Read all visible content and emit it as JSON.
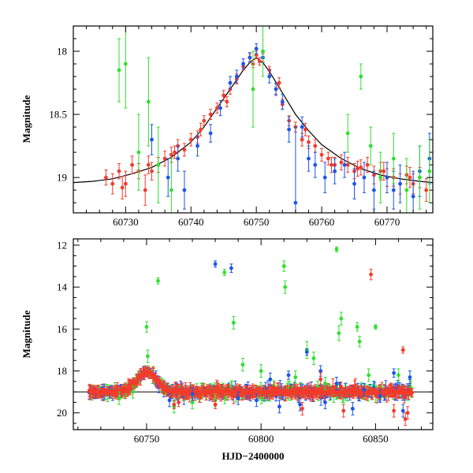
{
  "colors": {
    "green": "#2ee02e",
    "blue": "#1a56e8",
    "red": "#f53a2a",
    "model": "#000000",
    "frame": "#000000"
  },
  "chart_data": [
    {
      "type": "scatter",
      "title": "",
      "xlabel": "",
      "ylabel": "Magnitude",
      "xlim": [
        60722,
        60777
      ],
      "ylim": [
        19.28,
        17.8
      ],
      "y_inverted": true,
      "grid": false,
      "legend": "none",
      "xticks": [
        60730,
        60740,
        60750,
        60760,
        60770
      ],
      "xtick_labels": [
        "60730",
        "60740",
        "60750",
        "60760",
        "60770"
      ],
      "yticks": [
        18,
        18.5,
        19
      ],
      "ytick_labels": [
        "18",
        "18.5",
        "19"
      ],
      "model_curve": {
        "x": [
          60722,
          60725,
          60728,
          60731,
          60734,
          60737,
          60740,
          60742,
          60744,
          60746,
          60748,
          60749,
          60750,
          60751,
          60752,
          60754,
          60756,
          60758,
          60760,
          60763,
          60766,
          60769,
          60772,
          60775,
          60777
        ],
        "y": [
          19.04,
          19.03,
          19.01,
          18.97,
          18.92,
          18.84,
          18.72,
          18.6,
          18.45,
          18.3,
          18.15,
          18.09,
          18.05,
          18.09,
          18.16,
          18.33,
          18.5,
          18.63,
          18.74,
          18.85,
          18.93,
          18.98,
          19.01,
          19.03,
          19.04
        ]
      },
      "series": [
        {
          "color_key": "red",
          "x": [
            60727.0,
            60728.0,
            60729.0,
            60730.0,
            60731.0,
            60732.0,
            60733.0,
            60734.0,
            60735.0,
            60736.0,
            60737.0,
            60738.0,
            60739.0,
            60740.0,
            60741.0,
            60742.0,
            60743.0,
            60744.0,
            60745.0,
            60746.0,
            60747.0,
            60748.0,
            60749.0,
            60750.0,
            60751.0,
            60752.0,
            60753.0,
            60754.0,
            60755.0,
            60756.0,
            60757.0,
            60758.0,
            60759.0,
            60760.0,
            60761.0,
            60762.0,
            60763.0,
            60764.0,
            60765.0,
            60766.0,
            60767.0,
            60768.0,
            60769.0,
            60770.0,
            60771.0,
            60772.0,
            60773.0,
            60774.0,
            60775.0,
            60776.0,
            60729.5,
            60733.5,
            60737.5,
            60741.5,
            60745.5,
            60749.5,
            60750.5,
            60753.5,
            60757.5,
            60761.5,
            60765.5,
            60769.5,
            60773.5
          ],
          "y": [
            19.0,
            19.05,
            18.95,
            19.05,
            18.9,
            18.95,
            19.1,
            18.95,
            18.9,
            18.85,
            18.82,
            18.75,
            18.78,
            18.7,
            18.68,
            18.55,
            18.5,
            18.45,
            18.35,
            18.3,
            18.22,
            18.12,
            18.05,
            18.03,
            18.05,
            18.15,
            18.3,
            18.42,
            18.55,
            18.6,
            18.7,
            18.72,
            18.75,
            18.82,
            18.85,
            18.9,
            18.88,
            18.9,
            18.95,
            18.92,
            18.9,
            18.98,
            18.95,
            19.0,
            19.0,
            19.05,
            18.98,
            19.05,
            19.0,
            19.1,
            19.08,
            18.9,
            18.8,
            18.62,
            18.4,
            18.1,
            18.08,
            18.25,
            18.62,
            18.9,
            18.93,
            18.95,
            19.0
          ],
          "err": [
            0.06,
            0.08,
            0.06,
            0.1,
            0.07,
            0.06,
            0.12,
            0.07,
            0.06,
            0.06,
            0.06,
            0.05,
            0.05,
            0.05,
            0.05,
            0.04,
            0.04,
            0.04,
            0.04,
            0.04,
            0.04,
            0.03,
            0.03,
            0.03,
            0.03,
            0.03,
            0.04,
            0.04,
            0.04,
            0.04,
            0.05,
            0.05,
            0.05,
            0.05,
            0.05,
            0.06,
            0.06,
            0.06,
            0.06,
            0.06,
            0.06,
            0.07,
            0.07,
            0.07,
            0.07,
            0.08,
            0.07,
            0.08,
            0.08,
            0.09,
            0.09,
            0.07,
            0.05,
            0.05,
            0.04,
            0.03,
            0.03,
            0.04,
            0.05,
            0.06,
            0.06,
            0.07,
            0.08
          ]
        },
        {
          "color_key": "blue",
          "x": [
            60734.0,
            60736.5,
            60738.0,
            60739.0,
            60741.0,
            60743.0,
            60744.5,
            60746.0,
            60747.0,
            60748.0,
            60749.0,
            60750.0,
            60751.0,
            60752.0,
            60753.0,
            60754.0,
            60755.0,
            60756.0,
            60757.0,
            60758.0,
            60759.0,
            60760.5,
            60762.0,
            60763.5,
            60765.0,
            60766.5,
            60768.0,
            60770.0,
            60771.0,
            60772.0,
            60774.0,
            60775.0,
            60776.5
          ],
          "y": [
            18.7,
            19.0,
            18.85,
            19.1,
            18.75,
            18.65,
            18.45,
            18.25,
            18.2,
            18.1,
            18.05,
            17.98,
            18.05,
            18.2,
            18.3,
            18.4,
            18.62,
            19.2,
            18.6,
            18.85,
            18.9,
            19.0,
            18.95,
            18.9,
            19.05,
            19.0,
            19.1,
            19.0,
            19.1,
            19.05,
            19.15,
            18.95,
            18.85
          ],
          "err": [
            0.12,
            0.15,
            0.1,
            0.15,
            0.08,
            0.07,
            0.06,
            0.05,
            0.05,
            0.04,
            0.04,
            0.04,
            0.04,
            0.05,
            0.05,
            0.06,
            0.1,
            0.6,
            0.08,
            0.1,
            0.1,
            0.12,
            0.1,
            0.1,
            0.12,
            0.12,
            0.15,
            0.12,
            0.15,
            0.15,
            0.2,
            0.2,
            0.2
          ]
        },
        {
          "color_key": "green",
          "x": [
            60729.0,
            60730.0,
            60732.0,
            60733.5,
            60735.0,
            60737.0,
            60749.5,
            60751.0,
            60764.0,
            60766.0,
            60767.5,
            60769.0,
            60771.0,
            60773.0,
            60775.0,
            60776.5
          ],
          "y": [
            18.15,
            18.1,
            18.8,
            18.4,
            18.9,
            19.1,
            18.3,
            18.0,
            18.65,
            18.2,
            18.75,
            19.0,
            18.85,
            19.1,
            19.0,
            18.95
          ],
          "err": [
            0.25,
            0.35,
            0.3,
            0.35,
            0.3,
            0.25,
            0.3,
            0.2,
            0.15,
            0.1,
            0.15,
            0.2,
            0.2,
            0.25,
            0.25,
            0.25
          ]
        }
      ]
    },
    {
      "type": "scatter",
      "title": "",
      "xlabel": "HJD−2400000",
      "ylabel": "Magnitude",
      "xlim": [
        60718,
        60875
      ],
      "ylim": [
        20.8,
        11.7
      ],
      "y_inverted": true,
      "grid": false,
      "legend": "none",
      "xticks": [
        60750,
        60800,
        60850
      ],
      "xtick_labels": [
        "60750",
        "60800",
        "60850"
      ],
      "yticks": [
        12,
        14,
        16,
        18,
        20
      ],
      "ytick_labels": [
        "12",
        "14",
        "16",
        "18",
        "20"
      ],
      "baseline": {
        "x": [
          60718,
          60875
        ],
        "y": [
          19.0,
          19.0
        ]
      },
      "series": [
        {
          "color_key": "green",
          "x": [
            60755.0,
            60750.0,
            60750.5,
            60784.0,
            60788.0,
            60792.0,
            60810.0,
            60810.5,
            60820.0,
            60833.0,
            60834.0,
            60835.0,
            60842.0,
            60843.0,
            60847.0,
            60800.0,
            60815.0,
            60823.0,
            60828.0,
            60850.0,
            60860.0,
            60738.0,
            60744.0,
            60762.0,
            60770.0,
            60780.0
          ],
          "y": [
            13.7,
            15.9,
            17.3,
            13.3,
            15.7,
            17.7,
            13.0,
            14.0,
            17.0,
            12.2,
            16.2,
            15.5,
            15.9,
            16.6,
            18.2,
            18.0,
            18.3,
            17.4,
            18.6,
            15.9,
            18.2,
            19.3,
            19.0,
            19.7,
            19.5,
            19.4
          ],
          "err": [
            0.15,
            0.25,
            0.3,
            0.15,
            0.3,
            0.3,
            0.25,
            0.3,
            0.4,
            0.12,
            0.35,
            0.3,
            0.2,
            0.25,
            0.3,
            0.3,
            0.3,
            0.3,
            0.3,
            0.1,
            0.3,
            0.3,
            0.3,
            0.3,
            0.3,
            0.3
          ]
        },
        {
          "color_key": "blue",
          "x": [
            60780.0,
            60787.0,
            60804.0,
            60812.0,
            60820.0,
            60826.0,
            60833.0,
            60845.0,
            60858.0,
            60865.0,
            60790.0,
            60798.0,
            60817.0,
            60840.0,
            60852.0,
            60760.0,
            60770.0,
            60808.0,
            60828.0,
            60862.0
          ],
          "y": [
            12.9,
            13.1,
            18.4,
            18.2,
            17.1,
            18.0,
            18.6,
            18.9,
            18.1,
            18.3,
            19.3,
            19.4,
            19.6,
            19.8,
            19.2,
            19.4,
            19.1,
            19.7,
            19.5,
            19.9
          ],
          "err": [
            0.15,
            0.2,
            0.3,
            0.2,
            0.15,
            0.25,
            0.3,
            0.3,
            0.2,
            0.3,
            0.3,
            0.3,
            0.3,
            0.3,
            0.3,
            0.3,
            0.3,
            0.3,
            0.3,
            0.3
          ]
        },
        {
          "color_key": "red",
          "x": [
            60848.0,
            60862.0,
            60863.0,
            60762.0,
            60764.0,
            60780.0,
            60818.0,
            60826.0,
            60836.0,
            60858.0,
            60864.0
          ],
          "y": [
            13.4,
            17.0,
            20.3,
            19.6,
            19.5,
            19.6,
            19.8,
            18.4,
            19.9,
            19.9,
            20.0
          ],
          "err": [
            0.25,
            0.15,
            0.3,
            0.2,
            0.2,
            0.2,
            0.3,
            0.3,
            0.3,
            0.3,
            0.3
          ]
        }
      ],
      "baseline_cloud": {
        "x_start": 60725,
        "x_end": 60866,
        "peak_x": 60750,
        "peak_mag": 18.05,
        "base_mag": 19.0,
        "peak_width": 6,
        "scatter": 0.35
      }
    }
  ]
}
